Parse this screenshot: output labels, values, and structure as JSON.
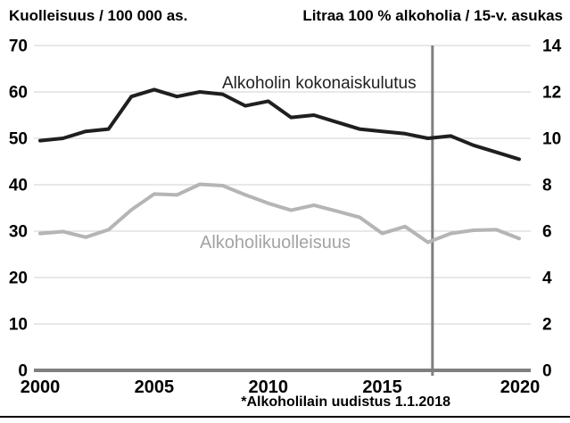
{
  "header": {
    "left_title": "Kuolleisuus / 100 000 as.",
    "right_title": "Litraa 100 % alkoholia / 15-v. asukas"
  },
  "chart_data": {
    "type": "line",
    "x": [
      2000,
      2001,
      2002,
      2003,
      2004,
      2005,
      2006,
      2007,
      2008,
      2009,
      2010,
      2011,
      2012,
      2013,
      2014,
      2015,
      2016,
      2017,
      2018,
      2019,
      2020,
      2021
    ],
    "series": [
      {
        "name": "Alkoholin kokonaiskulutus",
        "axis": "right",
        "unit": "litraa 100 % alkoholia / 15-v. asukas",
        "color": "#1f1f1f",
        "values": [
          9.9,
          10.0,
          10.3,
          10.4,
          11.8,
          12.1,
          11.8,
          12.0,
          11.9,
          11.4,
          11.6,
          10.9,
          11.0,
          10.7,
          10.4,
          10.3,
          10.2,
          10.0,
          10.1,
          9.7,
          9.4,
          9.1
        ]
      },
      {
        "name": "Alkoholikuolleisuus",
        "axis": "left",
        "unit": "kuolleisuus / 100 000 as.",
        "color": "#b5b5b5",
        "values": [
          29.5,
          29.9,
          28.7,
          30.3,
          34.6,
          38.0,
          37.8,
          40.1,
          39.8,
          37.8,
          36.0,
          34.5,
          35.6,
          34.3,
          33.0,
          29.5,
          31.0,
          27.6,
          29.5,
          30.2,
          30.3,
          28.4
        ]
      }
    ],
    "left_axis": {
      "title": "Kuolleisuus / 100 000 as.",
      "min": 0,
      "max": 70,
      "step": 10
    },
    "right_axis": {
      "title": "Litraa 100 % alkoholia / 15-v. asukas",
      "min": 0,
      "max": 14,
      "step": 2
    },
    "x_ticks": [
      2000,
      2005,
      2010,
      2015,
      2020
    ],
    "annotation": {
      "label": "*Alkoholilain uudistus 1.1.2018",
      "line_year": 2017.2
    },
    "grid": true,
    "legend_position": "inline-labels",
    "colors": {
      "grid": "#d9d9d9",
      "axis": "#7f7f7f",
      "annotation_line": "#7f7f7f",
      "tick_text": "#000000"
    }
  }
}
